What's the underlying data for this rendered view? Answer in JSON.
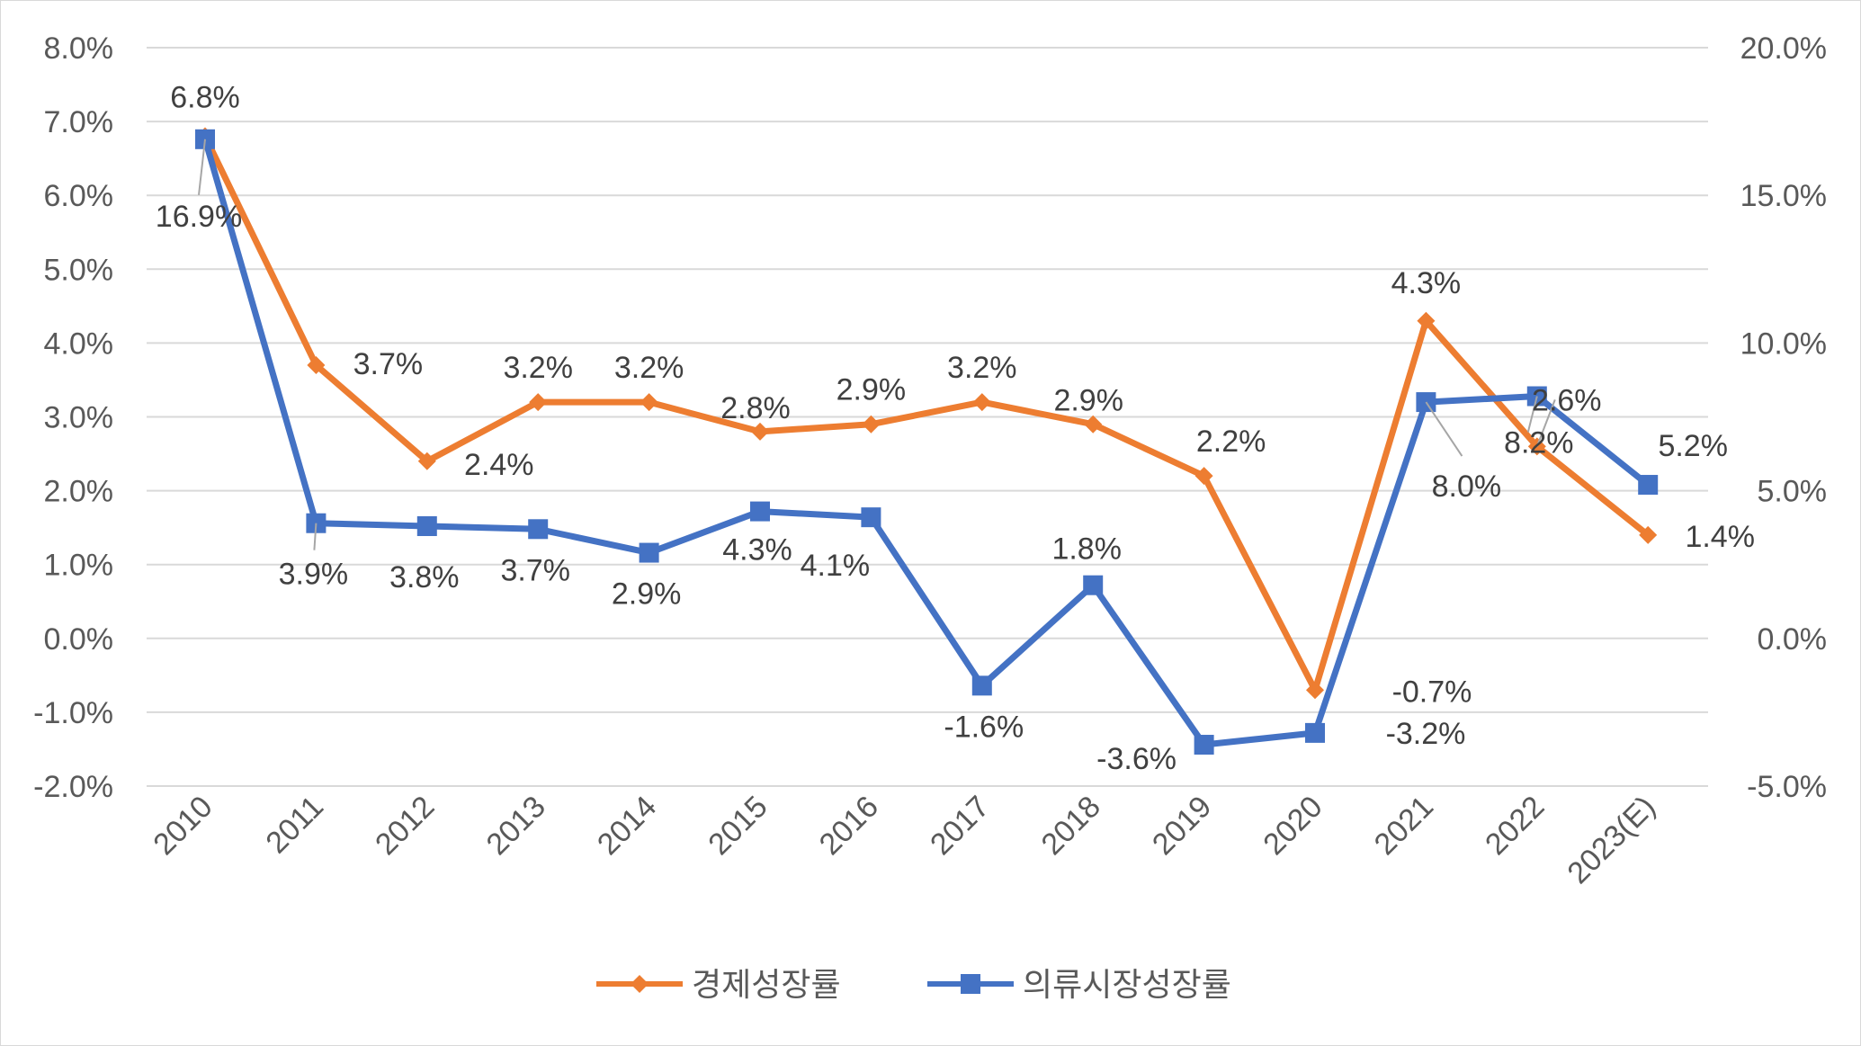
{
  "chart_data": {
    "type": "line",
    "title": "",
    "categories": [
      "2010",
      "2011",
      "2012",
      "2013",
      "2014",
      "2015",
      "2016",
      "2017",
      "2018",
      "2019",
      "2020",
      "2021",
      "2022",
      "2023(E)"
    ],
    "y_left": {
      "min": -2.0,
      "max": 8.0,
      "step": 1.0,
      "ticks": [
        "8.0%",
        "7.0%",
        "6.0%",
        "5.0%",
        "4.0%",
        "3.0%",
        "2.0%",
        "1.0%",
        "0.0%",
        "-1.0%",
        "-2.0%"
      ]
    },
    "y_right": {
      "min": -5.0,
      "max": 20.0,
      "step": 5.0,
      "ticks": [
        "20.0%",
        "15.0%",
        "10.0%",
        "5.0%",
        "0.0%",
        "-5.0%"
      ]
    },
    "grid": true,
    "legend_position": "bottom",
    "series": [
      {
        "name": "경제성장률",
        "axis": "left",
        "color": "#ED7D31",
        "marker": "diamond",
        "values": [
          6.8,
          3.7,
          2.4,
          3.2,
          3.2,
          2.8,
          2.9,
          3.2,
          2.9,
          2.2,
          -0.7,
          4.3,
          2.6,
          1.4
        ],
        "labels": [
          "6.8%",
          "3.7%",
          "2.4%",
          "3.2%",
          "3.2%",
          "2.8%",
          "2.9%",
          "3.2%",
          "2.9%",
          "2.2%",
          "-0.7%",
          "4.3%",
          "2.6%",
          "1.4%"
        ]
      },
      {
        "name": "의류시장성장률",
        "axis": "right",
        "color": "#4472C4",
        "marker": "square",
        "values": [
          16.9,
          3.9,
          3.8,
          3.7,
          2.9,
          4.3,
          4.1,
          -1.6,
          1.8,
          -3.6,
          -3.2,
          8.0,
          8.2,
          5.2
        ],
        "labels": [
          "16.9%",
          "3.9%",
          "3.8%",
          "3.7%",
          "2.9%",
          "4.3%",
          "4.1%",
          "-1.6%",
          "1.8%",
          "-3.6%",
          "-3.2%",
          "8.0%",
          "8.2%",
          "5.2%"
        ]
      }
    ]
  }
}
